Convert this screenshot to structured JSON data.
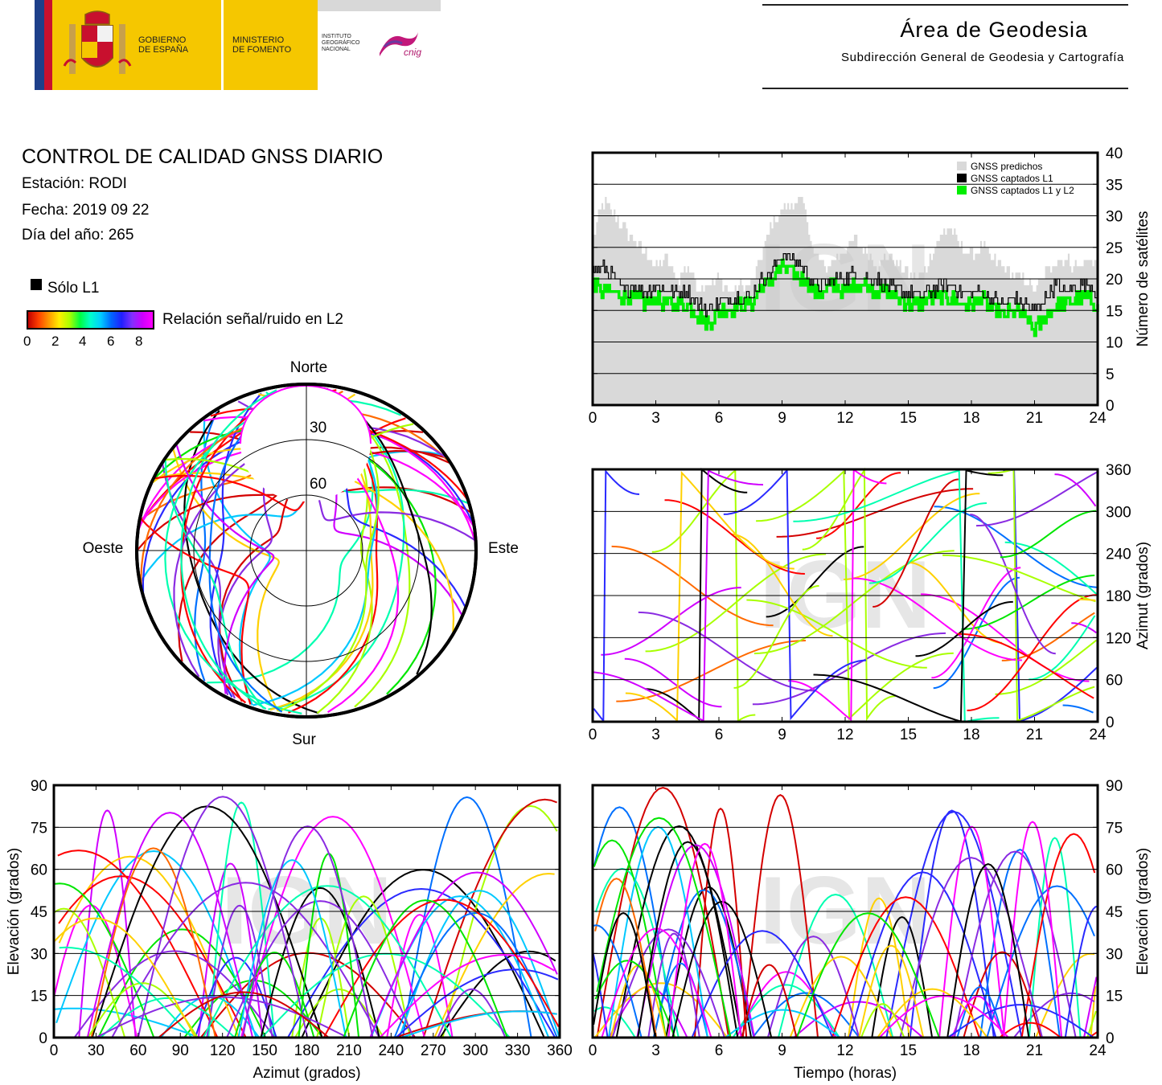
{
  "header": {
    "gobierno": [
      "GOBIERNO",
      "DE ESPAÑA"
    ],
    "ministerio": [
      "MINISTERIO",
      "DE FOMENTO"
    ],
    "instituto": [
      "INSTITUTO",
      "GEOGRÁFICO",
      "NACIONAL"
    ],
    "cnig": "cnig",
    "area_title": "Área de Geodesia",
    "area_subtitle": "Subdirección General de Geodesia y Cartografía"
  },
  "info": {
    "title": "CONTROL DE CALIDAD GNSS DIARIO",
    "station": "Estación: RODI",
    "date": "Fecha: 2019 09 22",
    "doy": "Día del año: 265",
    "only_l1": "Sólo L1",
    "snr_label": "Relación señal/ruido en L2",
    "snr_ticks": [
      "0",
      "2",
      "4",
      "6",
      "8"
    ]
  },
  "colors": {
    "predicted": "#d9d9d9",
    "l1": "#000000",
    "l1l2": "#00ee00",
    "watermark": "#c8c8c8"
  },
  "watermark": "IGN",
  "chart_data": [
    {
      "id": "satellites",
      "type": "area",
      "ylabel": "Número de satélites",
      "xlim": [
        0,
        24
      ],
      "ylim": [
        0,
        40
      ],
      "xticks": [
        0,
        3,
        6,
        9,
        12,
        15,
        18,
        21,
        24
      ],
      "yticks": [
        0,
        5,
        10,
        15,
        20,
        25,
        30,
        35,
        40
      ],
      "grid": "horizontal",
      "legend_position": "top-right",
      "series": [
        {
          "name": "GNSS predichos",
          "x": [
            0,
            0.5,
            1,
            1.5,
            2,
            2.5,
            3,
            3.5,
            4,
            4.5,
            5,
            5.5,
            6,
            6.5,
            7,
            7.5,
            8,
            8.5,
            9,
            9.5,
            10,
            10.5,
            11,
            11.5,
            12,
            12.5,
            13,
            13.5,
            14,
            14.5,
            15,
            15.5,
            16,
            16.5,
            17,
            17.5,
            18,
            18.5,
            19,
            19.5,
            20,
            20.5,
            21,
            21.5,
            22,
            22.5,
            23,
            23.5,
            24
          ],
          "values": [
            27,
            32,
            30,
            28,
            26,
            24,
            22,
            23,
            20,
            22,
            19,
            19,
            20,
            18,
            19,
            19,
            24,
            29,
            31,
            32,
            32,
            24,
            22,
            23,
            25,
            26,
            24,
            22,
            24,
            22,
            21,
            20,
            23,
            27,
            28,
            25,
            24,
            25,
            23,
            22,
            20,
            20,
            18,
            21,
            23,
            23,
            22,
            23,
            23
          ]
        },
        {
          "name": "GNSS captados L1",
          "x": [
            0,
            0.5,
            1,
            1.5,
            2,
            2.5,
            3,
            3.5,
            4,
            4.5,
            5,
            5.5,
            6,
            6.5,
            7,
            7.5,
            8,
            8.5,
            9,
            9.5,
            10,
            10.5,
            11,
            11.5,
            12,
            12.5,
            13,
            13.5,
            14,
            14.5,
            15,
            15.5,
            16,
            16.5,
            17,
            17.5,
            18,
            18.5,
            19,
            19.5,
            20,
            20.5,
            21,
            21.5,
            22,
            22.5,
            23,
            23.5,
            24
          ],
          "values": [
            21,
            22,
            20,
            18,
            19,
            18,
            19,
            18,
            18,
            18,
            16,
            15,
            16,
            17,
            17,
            17,
            20,
            21,
            24,
            23,
            22,
            19,
            19,
            20,
            20,
            21,
            20,
            20,
            19,
            18,
            18,
            17,
            18,
            19,
            19,
            18,
            18,
            18,
            17,
            16,
            17,
            16,
            15,
            17,
            19,
            18,
            19,
            19,
            18
          ]
        },
        {
          "name": "GNSS captados L1 y L2",
          "x": [
            0,
            0.5,
            1,
            1.5,
            2,
            2.5,
            3,
            3.5,
            4,
            4.5,
            5,
            5.5,
            6,
            6.5,
            7,
            7.5,
            8,
            8.5,
            9,
            9.5,
            10,
            10.5,
            11,
            11.5,
            12,
            12.5,
            13,
            13.5,
            14,
            14.5,
            15,
            15.5,
            16,
            16.5,
            17,
            17.5,
            18,
            18.5,
            19,
            19.5,
            20,
            20.5,
            21,
            21.5,
            22,
            22.5,
            23,
            23.5,
            24
          ],
          "values": [
            19,
            18,
            18,
            17,
            17,
            16,
            17,
            16,
            16,
            16,
            14,
            13,
            15,
            15,
            16,
            16,
            19,
            20,
            22,
            21,
            20,
            18,
            18,
            19,
            18,
            19,
            19,
            18,
            18,
            17,
            16,
            16,
            17,
            17,
            17,
            16,
            16,
            17,
            15,
            14,
            15,
            14,
            12,
            14,
            16,
            16,
            17,
            17,
            16
          ]
        }
      ]
    },
    {
      "id": "skyplot",
      "type": "scatter",
      "projection": "polar",
      "labels": {
        "north": "Norte",
        "south": "Sur",
        "west": "Oeste",
        "east": "Este"
      },
      "rings": [
        "30",
        "60"
      ]
    },
    {
      "id": "azimuth_time",
      "type": "scatter",
      "ylabel": "Azimut (grados)",
      "xlim": [
        0,
        24
      ],
      "ylim": [
        0,
        360
      ],
      "xticks": [
        0,
        3,
        6,
        9,
        12,
        15,
        18,
        21,
        24
      ],
      "yticks": [
        0,
        60,
        120,
        180,
        240,
        300,
        360
      ],
      "grid": "horizontal"
    },
    {
      "id": "elevation_azimuth",
      "type": "scatter",
      "xlabel": "Azimut (grados)",
      "ylabel": "Elevación (grados)",
      "xlim": [
        0,
        360
      ],
      "ylim": [
        0,
        90
      ],
      "xticks": [
        0,
        30,
        60,
        90,
        120,
        150,
        180,
        210,
        240,
        270,
        300,
        330,
        360
      ],
      "yticks": [
        0,
        15,
        30,
        45,
        60,
        75,
        90
      ],
      "grid": "horizontal"
    },
    {
      "id": "elevation_time",
      "type": "scatter",
      "xlabel": "Tiempo (horas)",
      "ylabel": "Elevación (grados)",
      "xlim": [
        0,
        24
      ],
      "ylim": [
        0,
        90
      ],
      "xticks": [
        0,
        3,
        6,
        9,
        12,
        15,
        18,
        21,
        24
      ],
      "yticks": [
        0,
        15,
        30,
        45,
        60,
        75,
        90
      ],
      "grid": "horizontal"
    }
  ]
}
